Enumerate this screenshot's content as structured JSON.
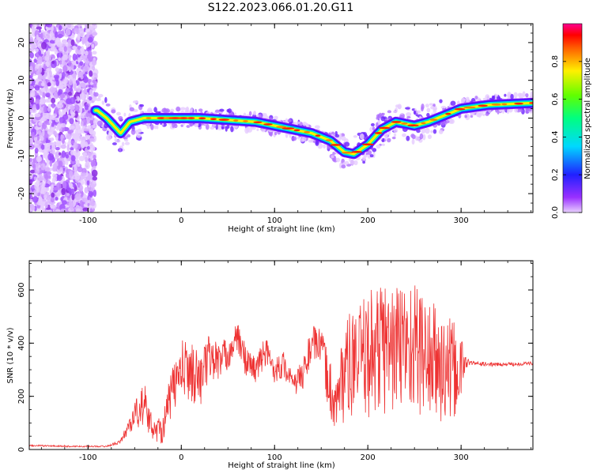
{
  "title": "S122.2023.066.01.20.G11",
  "chart_data": [
    {
      "type": "heatmap",
      "title": "S122.2023.066.01.20.G11",
      "xlabel": "Height of straight line (km)",
      "ylabel": "Frequency (Hz)",
      "xlim": [
        -163,
        377
      ],
      "ylim": [
        -25,
        25
      ],
      "xticks": [
        -100,
        0,
        100,
        200,
        300
      ],
      "yticks": [
        -20,
        -10,
        0,
        10,
        20
      ],
      "colorbar": {
        "label": "Normalized spectral amplitude",
        "range": [
          0,
          1
        ],
        "ticks": [
          0.0,
          0.2,
          0.4,
          0.6,
          0.8
        ],
        "colormap": "rainbow"
      },
      "ridge": {
        "name": "",
        "x": [
          -90,
          -80,
          -65,
          -55,
          -40,
          -20,
          0,
          20,
          50,
          80,
          100,
          120,
          140,
          160,
          175,
          185,
          200,
          215,
          230,
          250,
          265,
          280,
          300,
          330,
          377
        ],
        "y": [
          2,
          0,
          -4,
          -1,
          0,
          0,
          0,
          0,
          -0.5,
          -1,
          -2,
          -3,
          -4,
          -6,
          -9,
          -9.5,
          -7,
          -3,
          -1,
          -2,
          -1,
          0.5,
          2.5,
          3.5,
          4
        ]
      },
      "noise_region": {
        "x_start": -163,
        "x_end": -92
      }
    },
    {
      "type": "line",
      "xlabel": "Height of straight line (km)",
      "ylabel": "SNR (10 * v/v)",
      "xlim": [
        -163,
        377
      ],
      "ylim": [
        0,
        710
      ],
      "xticks": [
        -100,
        0,
        100,
        200,
        300
      ],
      "yticks": [
        0,
        200,
        400,
        600
      ],
      "color": "#ee3333",
      "series": [
        {
          "name": "",
          "x": [
            -163,
            -120,
            -80,
            -65,
            -50,
            -40,
            -30,
            -20,
            -10,
            0,
            10,
            20,
            30,
            40,
            50,
            60,
            70,
            80,
            90,
            100,
            110,
            120,
            130,
            140,
            150,
            158,
            165,
            175,
            190,
            200,
            210,
            220,
            230,
            240,
            250,
            260,
            270,
            280,
            290,
            300,
            305,
            310,
            330,
            350,
            377
          ],
          "y": [
            15,
            12,
            12,
            30,
            130,
            170,
            70,
            80,
            220,
            300,
            300,
            260,
            350,
            330,
            360,
            420,
            330,
            300,
            370,
            300,
            320,
            240,
            280,
            400,
            390,
            250,
            160,
            300,
            330,
            360,
            380,
            390,
            380,
            400,
            390,
            360,
            330,
            300,
            290,
            300,
            330,
            325,
            320,
            320,
            325
          ],
          "spread": [
            3,
            3,
            3,
            8,
            50,
            90,
            35,
            60,
            90,
            110,
            120,
            100,
            90,
            80,
            60,
            60,
            60,
            50,
            60,
            50,
            50,
            40,
            60,
            70,
            60,
            120,
            90,
            200,
            200,
            240,
            260,
            260,
            250,
            260,
            250,
            240,
            230,
            220,
            200,
            140,
            25,
            8,
            7,
            7,
            7
          ]
        }
      ]
    }
  ]
}
